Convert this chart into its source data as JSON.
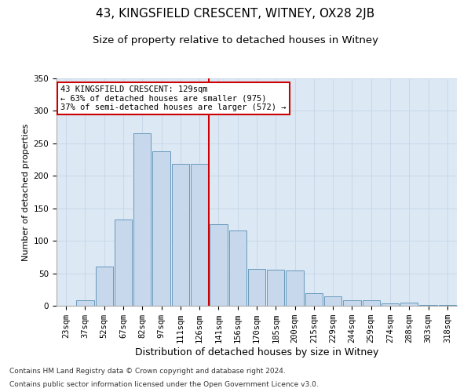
{
  "title": "43, KINGSFIELD CRESCENT, WITNEY, OX28 2JB",
  "subtitle": "Size of property relative to detached houses in Witney",
  "xlabel": "Distribution of detached houses by size in Witney",
  "ylabel": "Number of detached properties",
  "categories": [
    "23sqm",
    "37sqm",
    "52sqm",
    "67sqm",
    "82sqm",
    "97sqm",
    "111sqm",
    "126sqm",
    "141sqm",
    "156sqm",
    "170sqm",
    "185sqm",
    "200sqm",
    "215sqm",
    "229sqm",
    "244sqm",
    "259sqm",
    "274sqm",
    "288sqm",
    "303sqm",
    "318sqm"
  ],
  "values": [
    0,
    8,
    60,
    133,
    265,
    238,
    219,
    219,
    126,
    116,
    57,
    55,
    54,
    19,
    14,
    8,
    8,
    4,
    5,
    1,
    1
  ],
  "bar_color": "#c8d8ec",
  "bar_edge_color": "#6699bb",
  "vline_x_index": 7,
  "vline_color": "#cc0000",
  "annotation_line1": "43 KINGSFIELD CRESCENT: 129sqm",
  "annotation_line2": "← 63% of detached houses are smaller (975)",
  "annotation_line3": "37% of semi-detached houses are larger (572) →",
  "annotation_box_color": "#ffffff",
  "annotation_box_edge": "#cc0000",
  "ylim": [
    0,
    350
  ],
  "yticks": [
    0,
    50,
    100,
    150,
    200,
    250,
    300,
    350
  ],
  "grid_color": "#c8d8e8",
  "bg_color": "#dce8f4",
  "footnote1": "Contains HM Land Registry data © Crown copyright and database right 2024.",
  "footnote2": "Contains public sector information licensed under the Open Government Licence v3.0.",
  "title_fontsize": 11,
  "subtitle_fontsize": 9.5,
  "xlabel_fontsize": 9,
  "ylabel_fontsize": 8,
  "tick_fontsize": 7.5,
  "footnote_fontsize": 6.5
}
